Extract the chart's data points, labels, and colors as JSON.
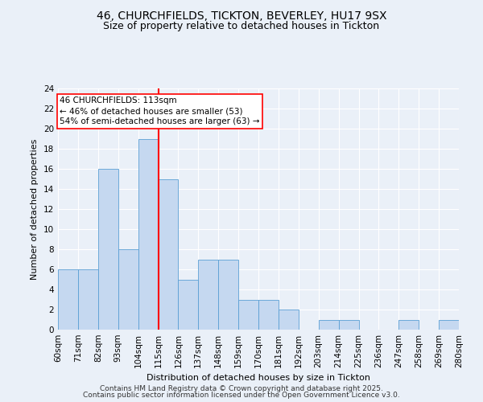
{
  "title_line1": "46, CHURCHFIELDS, TICKTON, BEVERLEY, HU17 9SX",
  "title_line2": "Size of property relative to detached houses in Tickton",
  "xlabel": "Distribution of detached houses by size in Tickton",
  "ylabel": "Number of detached properties",
  "bins": [
    60,
    71,
    82,
    93,
    104,
    115,
    126,
    137,
    148,
    159,
    170,
    181,
    192,
    203,
    214,
    225,
    236,
    247,
    258,
    269,
    280
  ],
  "counts": [
    6,
    6,
    16,
    8,
    19,
    15,
    5,
    7,
    7,
    3,
    3,
    2,
    0,
    1,
    1,
    0,
    0,
    1,
    0,
    1
  ],
  "bar_color": "#c5d8f0",
  "bar_edge_color": "#5a9fd4",
  "vline_x": 115,
  "vline_color": "red",
  "annotation_text": "46 CHURCHFIELDS: 113sqm\n← 46% of detached houses are smaller (53)\n54% of semi-detached houses are larger (63) →",
  "annotation_box_color": "white",
  "annotation_box_edge_color": "red",
  "ylim": [
    0,
    24
  ],
  "yticks": [
    0,
    2,
    4,
    6,
    8,
    10,
    12,
    14,
    16,
    18,
    20,
    22,
    24
  ],
  "tick_labels": [
    "60sqm",
    "71sqm",
    "82sqm",
    "93sqm",
    "104sqm",
    "115sqm",
    "126sqm",
    "137sqm",
    "148sqm",
    "159sqm",
    "170sqm",
    "181sqm",
    "192sqm",
    "203sqm",
    "214sqm",
    "225sqm",
    "236sqm",
    "247sqm",
    "258sqm",
    "269sqm",
    "280sqm"
  ],
  "footer_line1": "Contains HM Land Registry data © Crown copyright and database right 2025.",
  "footer_line2": "Contains public sector information licensed under the Open Government Licence v3.0.",
  "background_color": "#eaf0f8",
  "grid_color": "white",
  "title_fontsize": 10,
  "subtitle_fontsize": 9,
  "axis_label_fontsize": 8,
  "tick_fontsize": 7.5,
  "annotation_fontsize": 7.5,
  "footer_fontsize": 6.5
}
